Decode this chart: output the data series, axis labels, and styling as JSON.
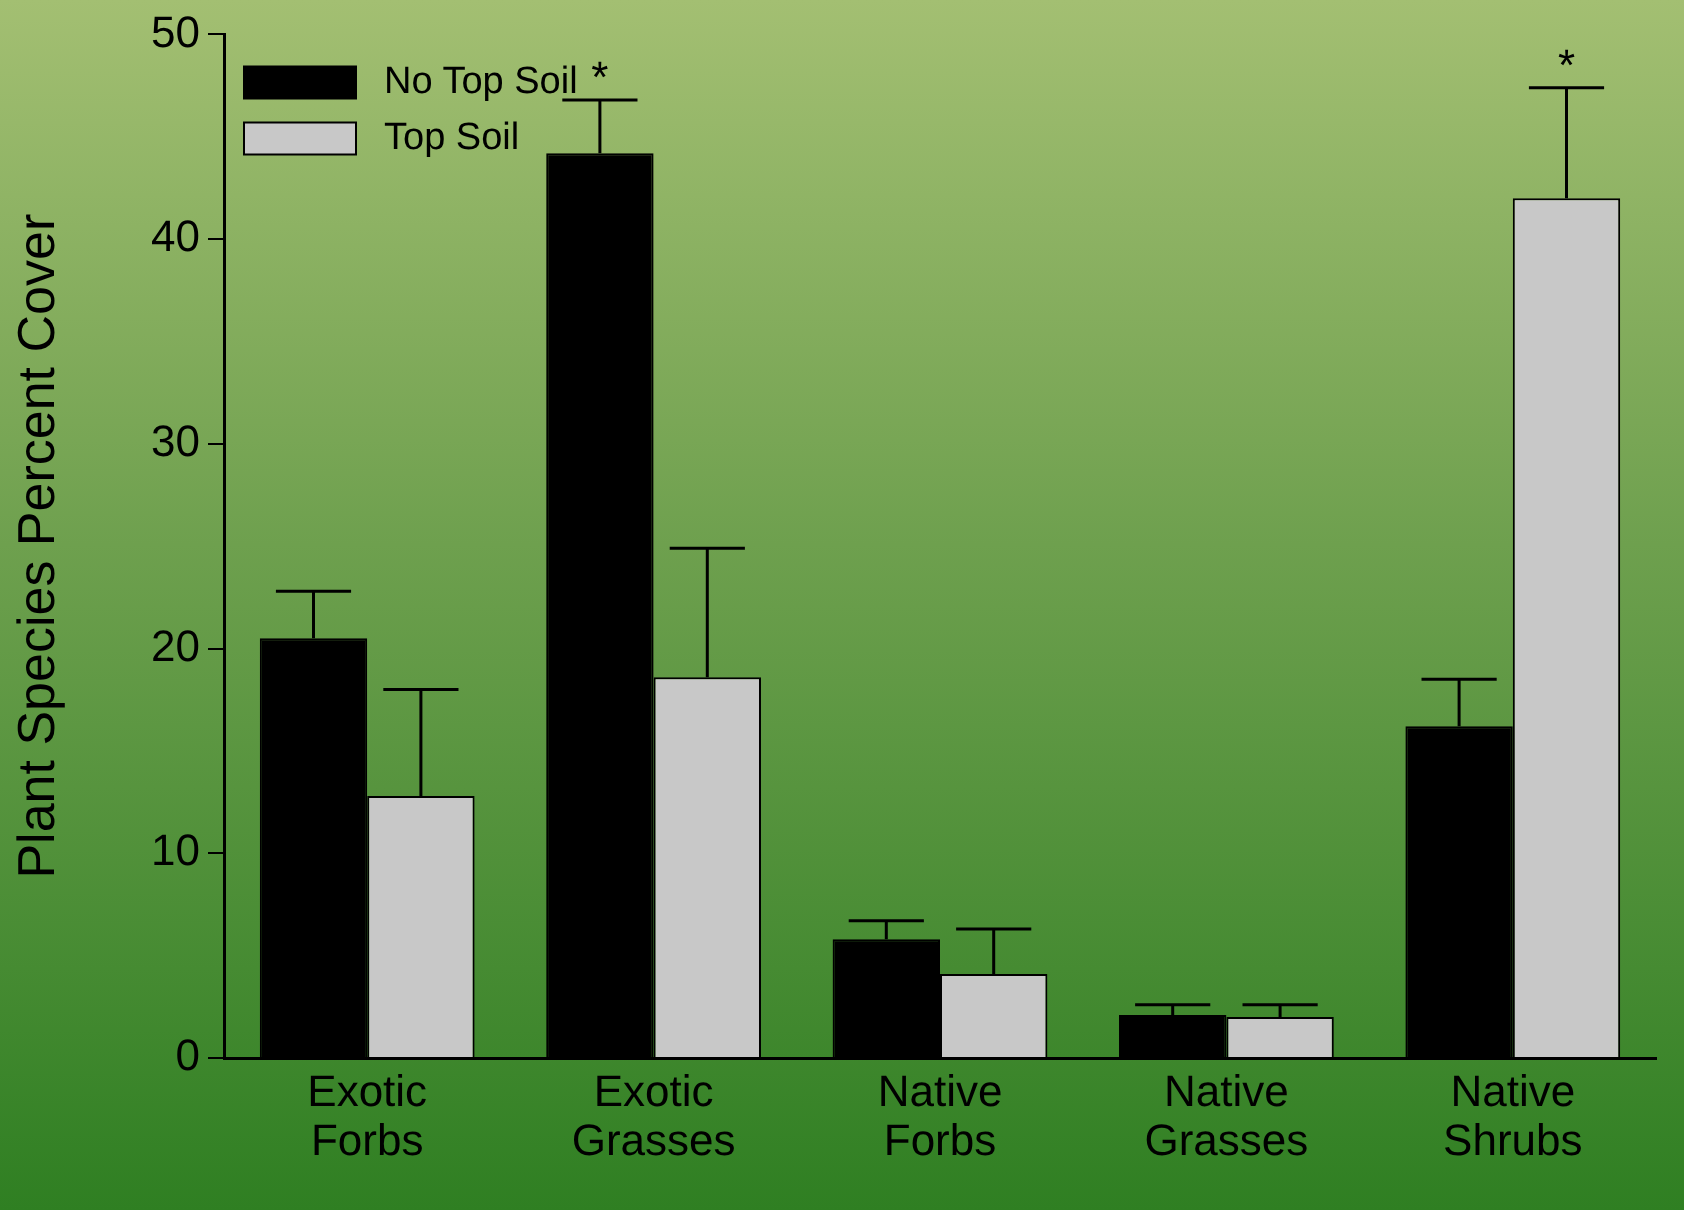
{
  "chart_data": {
    "type": "bar",
    "ylabel": "Plant Species Percent Cover",
    "categories": [
      "Exotic Forbs",
      "Exotic Grasses",
      "Native Forbs",
      "Native Grasses",
      "Native Shrubs"
    ],
    "series": [
      {
        "name": "No Top Soil",
        "color": "#000000",
        "values": [
          20.5,
          44.2,
          5.8,
          2.1,
          16.2
        ],
        "errors": [
          [
            20.5,
            22.8
          ],
          [
            44.2,
            46.8
          ],
          [
            5.8,
            6.7
          ],
          [
            2.1,
            2.6
          ],
          [
            16.2,
            18.5
          ]
        ]
      },
      {
        "name": "Top Soil",
        "color": "#c8c8c8",
        "values": [
          12.8,
          18.6,
          4.1,
          2.0,
          42.0
        ],
        "errors": [
          [
            12.8,
            18.0
          ],
          [
            18.6,
            24.9
          ],
          [
            4.1,
            6.3
          ],
          [
            2.0,
            2.6
          ],
          [
            42.0,
            47.4
          ]
        ]
      }
    ],
    "ylim": [
      0,
      50
    ],
    "yticks": [
      0,
      10,
      20,
      30,
      40,
      50
    ],
    "grid": false,
    "legend": "top left",
    "annotations": [
      {
        "text": "*",
        "x": "Exotic Grasses",
        "y": 44.2
      },
      {
        "text": "*",
        "x": "Native Shrubs",
        "y": 42.0
      }
    ]
  }
}
